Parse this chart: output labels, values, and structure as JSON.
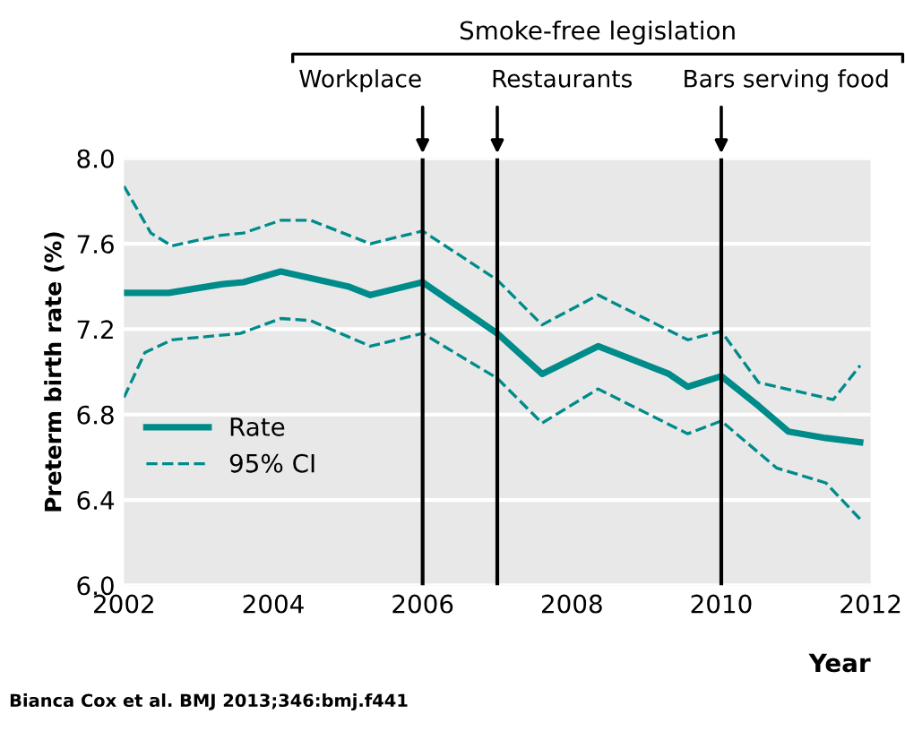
{
  "chart_data": {
    "type": "line",
    "title": "Smoke-free legislation",
    "xlabel": "Year",
    "ylabel": "Preterm birth rate (%)",
    "series": [
      {
        "name": "Rate",
        "color": "#008b8b",
        "line_style": "solid",
        "x": [
          2002.0,
          2002.6,
          2003.3,
          2003.6,
          2004.1,
          2005.0,
          2005.3,
          2006.0,
          2006.5,
          2007.0,
          2007.6,
          2008.35,
          2009.3,
          2009.55,
          2010.0,
          2010.5,
          2010.9,
          2011.4,
          2011.86
        ],
        "values": [
          7.37,
          7.37,
          7.41,
          7.42,
          7.47,
          7.4,
          7.36,
          7.42,
          7.3,
          7.18,
          6.99,
          7.12,
          6.99,
          6.93,
          6.98,
          6.84,
          6.72,
          6.69,
          6.67
        ]
      },
      {
        "name": "95% CI",
        "color": "#008b8b",
        "line_style": "dashed",
        "x": [
          2002.0,
          2002.36,
          2002.64,
          2003.3,
          2003.6,
          2004.1,
          2004.5,
          2005.3,
          2006.0,
          2007.0,
          2007.6,
          2008.35,
          2009.55,
          2010.0,
          2010.5,
          2011.5,
          2011.86
        ],
        "values": [
          7.87,
          7.65,
          7.59,
          7.64,
          7.65,
          7.71,
          7.71,
          7.6,
          7.66,
          7.43,
          7.22,
          7.36,
          7.15,
          7.19,
          6.95,
          6.87,
          7.03
        ]
      },
      {
        "color": "#008b8b",
        "line_style": "dashed",
        "x": [
          2002.0,
          2002.28,
          2002.64,
          2003.56,
          2004.1,
          2004.5,
          2005.3,
          2006.0,
          2007.0,
          2007.6,
          2008.35,
          2009.55,
          2010.0,
          2010.74,
          2011.4,
          2011.86
        ],
        "values": [
          6.88,
          7.09,
          7.15,
          7.18,
          7.25,
          7.24,
          7.12,
          7.18,
          6.97,
          6.76,
          6.92,
          6.71,
          6.77,
          6.55,
          6.48,
          6.31
        ]
      }
    ],
    "xlim": [
      2002,
      2012
    ],
    "xticks": [
      2002,
      2004,
      2006,
      2008,
      2010,
      2012
    ],
    "ylim": [
      6.0,
      8.0
    ],
    "yticks": [
      {
        "value": 6.0,
        "label": "6.0"
      },
      {
        "value": 6.4,
        "label": "6.4"
      },
      {
        "value": 6.8,
        "label": "6.8"
      },
      {
        "value": 7.2,
        "label": "7.2"
      },
      {
        "value": 7.6,
        "label": "7.6"
      },
      {
        "value": 8.0,
        "label": "8.0"
      }
    ],
    "ref_lines": [
      {
        "axis": "x",
        "value": 2006,
        "label": "Workplace",
        "color": "#000000"
      },
      {
        "axis": "x",
        "value": 2007,
        "label": "Restaurants",
        "color": "#000000"
      },
      {
        "axis": "x",
        "value": 2010,
        "label": "Bars serving food",
        "color": "#000000"
      }
    ],
    "annotations": [
      "Bianca Cox et al. BMJ 2013;346:bmj.f441"
    ],
    "grid": "y",
    "legend": "bottom left"
  }
}
